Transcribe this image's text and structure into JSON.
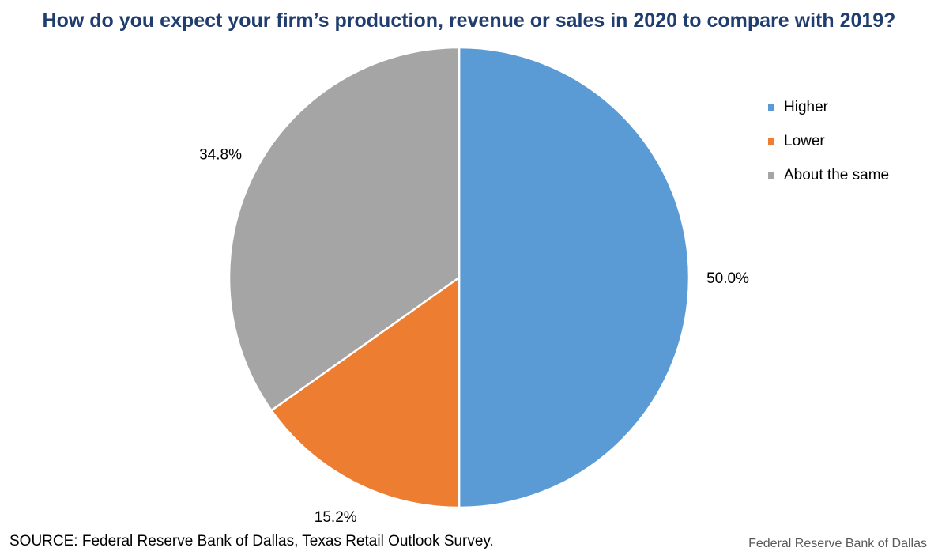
{
  "chart_data": {
    "type": "pie",
    "title": "How do you expect your firm’s production, revenue or sales in 2020 to compare with 2019?",
    "categories": [
      "Higher",
      "Lower",
      "About the same"
    ],
    "values": [
      50.0,
      15.2,
      34.8
    ],
    "data_labels": [
      "50.0%",
      "15.2%",
      "34.8%"
    ],
    "colors": [
      "#5b9bd5",
      "#ed7d31",
      "#a5a5a5"
    ],
    "legend_position": "right"
  },
  "footer": {
    "source": "SOURCE: Federal Reserve Bank of Dallas, Texas Retail Outlook Survey.",
    "credit": "Federal Reserve Bank of Dallas"
  }
}
